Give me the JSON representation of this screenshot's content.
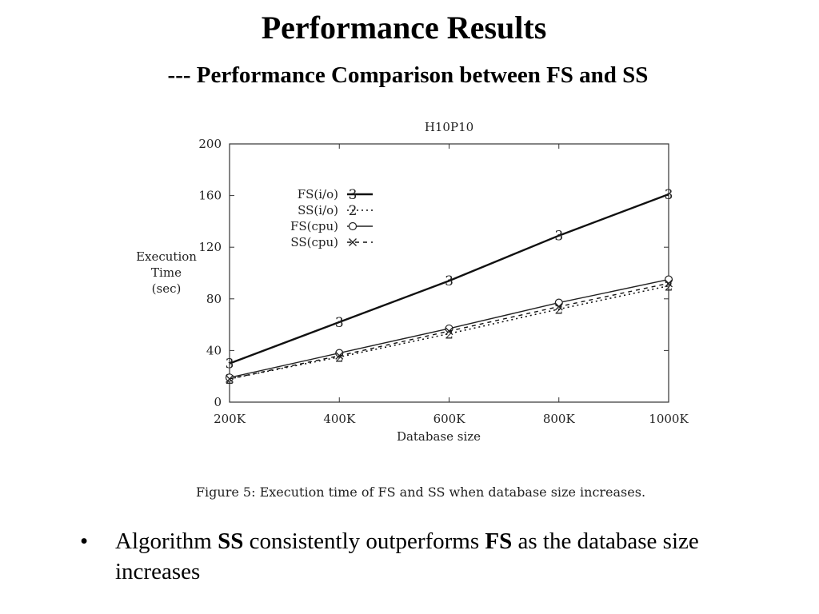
{
  "slide": {
    "title": "Performance Results",
    "subtitle": "--- Performance Comparison between FS and SS"
  },
  "chart_data": {
    "type": "line",
    "title": "H10P10",
    "xlabel": "Database size",
    "ylabel_lines": [
      "Execution",
      "Time",
      "(sec)"
    ],
    "x": [
      200,
      400,
      600,
      800,
      1000
    ],
    "x_tick_labels": [
      "200K",
      "400K",
      "600K",
      "800K",
      "1000K"
    ],
    "xlim": [
      200,
      1000
    ],
    "ylim": [
      0,
      200
    ],
    "y_ticks": [
      0,
      40,
      80,
      120,
      160,
      200
    ],
    "y_tick_labels": [
      "0",
      "40",
      "80",
      "120",
      "160",
      "200"
    ],
    "legend_position": "top-left",
    "grid": false,
    "series": [
      {
        "name": "FS(i/o)",
        "marker": "3",
        "style": "solid",
        "color": "#111111",
        "width": 2.4,
        "values": [
          30,
          62,
          94,
          129,
          161
        ]
      },
      {
        "name": "SS(i/o)",
        "marker": "2",
        "style": "dotted",
        "color": "#111111",
        "width": 1.6,
        "values": [
          18,
          35,
          53,
          72,
          90
        ]
      },
      {
        "name": "FS(cpu)",
        "marker": "o",
        "style": "solid",
        "color": "#222222",
        "width": 1.4,
        "values": [
          19,
          38,
          57,
          77,
          95
        ]
      },
      {
        "name": "SS(cpu)",
        "marker": "x",
        "style": "dashed",
        "color": "#111111",
        "width": 1.4,
        "values": [
          18,
          36,
          55,
          74,
          92
        ]
      }
    ],
    "caption": "Figure 5: Execution time of FS and SS when database size increases."
  },
  "bullets": [
    {
      "marker": "•",
      "parts": [
        {
          "text": "Algorithm ",
          "bold": false
        },
        {
          "text": "SS",
          "bold": true
        },
        {
          "text": " consistently outperforms ",
          "bold": false
        },
        {
          "text": "FS",
          "bold": true
        },
        {
          "text": " as the database size increases",
          "bold": false
        }
      ]
    }
  ]
}
